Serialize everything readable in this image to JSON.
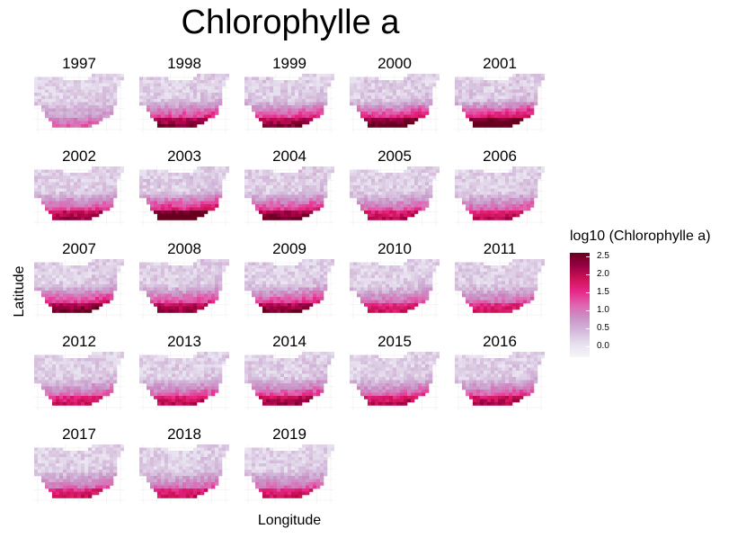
{
  "title": "Chlorophylle a",
  "chart_data": {
    "type": "heatmap",
    "title": "Chlorophylle a",
    "xlabel": "Longitude",
    "ylabel": "Latitude",
    "facets": [
      "1997",
      "1998",
      "1999",
      "2000",
      "2001",
      "2002",
      "2003",
      "2004",
      "2005",
      "2006",
      "2007",
      "2008",
      "2009",
      "2010",
      "2011",
      "2012",
      "2013",
      "2014",
      "2015",
      "2016",
      "2017",
      "2018",
      "2019"
    ],
    "facet_intensity": [
      0.35,
      0.8,
      0.8,
      0.9,
      1.0,
      0.75,
      1.0,
      0.85,
      0.65,
      0.65,
      0.85,
      0.75,
      0.8,
      0.6,
      0.6,
      0.6,
      0.65,
      0.75,
      0.65,
      0.7,
      0.6,
      0.6,
      0.6
    ],
    "legend": {
      "title": "log10 (Chlorophylle a)",
      "ticks": [
        "2.5",
        "2.0",
        "1.5",
        "1.0",
        "0.5",
        "0.0"
      ],
      "range": [
        -0.3,
        2.6
      ],
      "colors": [
        "#f7f4f9",
        "#e7e1ef",
        "#d4b9da",
        "#c994c7",
        "#df65b0",
        "#e7298a",
        "#ce1256",
        "#980043",
        "#67001f"
      ]
    }
  }
}
